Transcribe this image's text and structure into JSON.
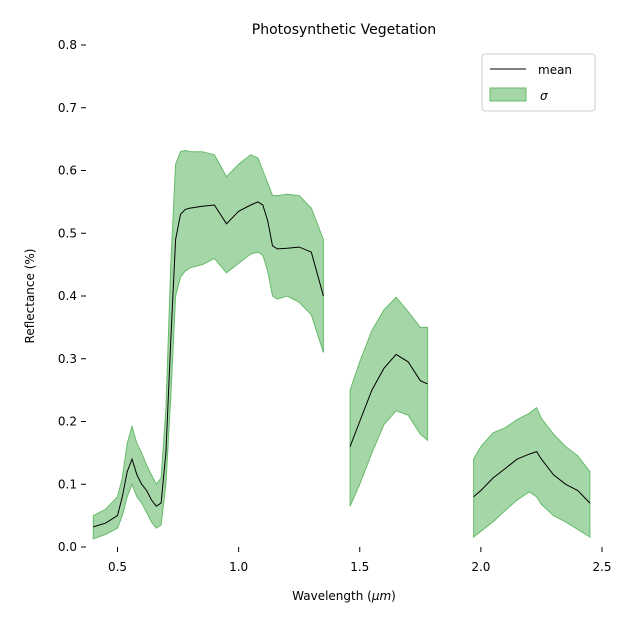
{
  "chart_data": {
    "type": "area",
    "title": "Photosynthetic Vegetation",
    "xlabel_main": "Wavelength (",
    "xlabel_unit": "μm",
    "xlabel_close": ")",
    "ylabel": "Reflectance (%)",
    "xlim": [
      0.37,
      2.5
    ],
    "ylim": [
      0.0,
      0.8
    ],
    "xticks": [
      0.5,
      1.0,
      1.5,
      2.0,
      2.5
    ],
    "xtick_labels": [
      "0.5",
      "1.0",
      "1.5",
      "2.0",
      "2.5"
    ],
    "yticks": [
      0.0,
      0.1,
      0.2,
      0.3,
      0.4,
      0.5,
      0.6,
      0.7,
      0.8
    ],
    "ytick_labels": [
      "0.0",
      "0.1",
      "0.2",
      "0.3",
      "0.4",
      "0.5",
      "0.6",
      "0.7",
      "0.8"
    ],
    "grid": false,
    "legend_position": "top-right",
    "series": [
      {
        "name": "mean",
        "kind": "line",
        "color": "#000000"
      },
      {
        "name": "σ",
        "kind": "band",
        "color": "#a5d6a7",
        "edge_color": "#66bb6a"
      }
    ],
    "segments": [
      {
        "x": [
          0.4,
          0.45,
          0.5,
          0.52,
          0.54,
          0.56,
          0.58,
          0.6,
          0.62,
          0.64,
          0.66,
          0.68,
          0.7,
          0.72,
          0.74,
          0.76,
          0.78,
          0.8,
          0.85,
          0.9,
          0.95,
          1.0,
          1.05,
          1.08,
          1.1,
          1.12,
          1.14,
          1.16,
          1.2,
          1.25,
          1.3,
          1.35
        ],
        "mean": [
          0.032,
          0.038,
          0.05,
          0.08,
          0.12,
          0.14,
          0.115,
          0.1,
          0.09,
          0.075,
          0.065,
          0.07,
          0.15,
          0.33,
          0.49,
          0.53,
          0.538,
          0.54,
          0.543,
          0.545,
          0.515,
          0.535,
          0.545,
          0.55,
          0.545,
          0.52,
          0.48,
          0.475,
          0.476,
          0.478,
          0.47,
          0.4
        ],
        "upper": [
          0.05,
          0.06,
          0.08,
          0.11,
          0.165,
          0.192,
          0.165,
          0.15,
          0.13,
          0.115,
          0.1,
          0.11,
          0.22,
          0.45,
          0.61,
          0.63,
          0.632,
          0.63,
          0.63,
          0.625,
          0.59,
          0.61,
          0.625,
          0.62,
          0.6,
          0.58,
          0.56,
          0.56,
          0.562,
          0.56,
          0.54,
          0.49
        ],
        "lower": [
          0.013,
          0.02,
          0.03,
          0.05,
          0.08,
          0.1,
          0.08,
          0.07,
          0.055,
          0.04,
          0.03,
          0.035,
          0.1,
          0.24,
          0.4,
          0.43,
          0.44,
          0.445,
          0.45,
          0.46,
          0.437,
          0.452,
          0.467,
          0.47,
          0.465,
          0.44,
          0.4,
          0.395,
          0.4,
          0.39,
          0.37,
          0.31
        ]
      },
      {
        "x": [
          1.46,
          1.5,
          1.55,
          1.6,
          1.65,
          1.7,
          1.75,
          1.78
        ],
        "mean": [
          0.16,
          0.2,
          0.25,
          0.285,
          0.307,
          0.295,
          0.265,
          0.26
        ],
        "upper": [
          0.25,
          0.295,
          0.345,
          0.378,
          0.398,
          0.375,
          0.35,
          0.35
        ],
        "lower": [
          0.065,
          0.1,
          0.15,
          0.195,
          0.217,
          0.21,
          0.18,
          0.17
        ]
      },
      {
        "x": [
          1.97,
          2.0,
          2.05,
          2.1,
          2.15,
          2.2,
          2.23,
          2.25,
          2.3,
          2.35,
          2.4,
          2.45
        ],
        "mean": [
          0.08,
          0.09,
          0.11,
          0.125,
          0.14,
          0.148,
          0.152,
          0.14,
          0.115,
          0.1,
          0.09,
          0.07
        ],
        "upper": [
          0.14,
          0.16,
          0.182,
          0.19,
          0.203,
          0.213,
          0.222,
          0.205,
          0.18,
          0.16,
          0.145,
          0.12
        ],
        "lower": [
          0.016,
          0.025,
          0.04,
          0.058,
          0.075,
          0.088,
          0.08,
          0.068,
          0.05,
          0.04,
          0.028,
          0.016
        ]
      }
    ]
  }
}
